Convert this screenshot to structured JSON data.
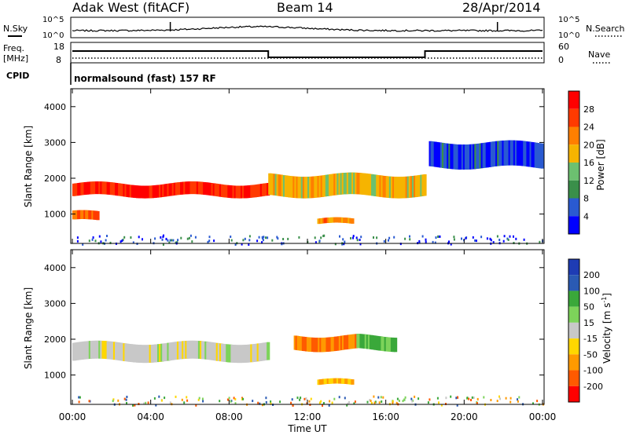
{
  "header": {
    "station": "Adak West (fitACF)",
    "beam": "Beam 14",
    "date": "28/Apr/2014"
  },
  "noise_panel": {
    "left_label": "N.Sky",
    "right_label": "N.Search",
    "tick_top": "10^5",
    "tick_bottom": "10^0"
  },
  "freq_panel": {
    "left_label_line1": "Freq.",
    "left_label_line2": "[MHz]",
    "left_ticks": [
      "18",
      "8"
    ],
    "right_ticks": [
      "60",
      "0"
    ],
    "right_label": "Nave",
    "freq_steps": [
      {
        "from": "00:00",
        "to": "10:00",
        "level": "high"
      },
      {
        "from": "10:00",
        "to": "18:00",
        "level": "low"
      },
      {
        "from": "18:00",
        "to": "24:00",
        "level": "high"
      }
    ]
  },
  "cpid": {
    "label": "CPID",
    "program": "normalsound (fast) 157 RF"
  },
  "colors": {
    "power_scale": [
      "#0000ff",
      "#2a5ad1",
      "#3a8f4a",
      "#6cc070",
      "#f6b400",
      "#ff7f00",
      "#ff3a00",
      "#ff0000"
    ],
    "velocity_scale": [
      "#ff0000",
      "#ff5a00",
      "#ff9a00",
      "#ffd700",
      "#c8c8c8",
      "#7dd35a",
      "#3aa83a",
      "#2a5ab4",
      "#1e3cb4"
    ],
    "ground_scatter": "#c8c8c8"
  },
  "chart_data": [
    {
      "type": "heatmap",
      "title": "Power",
      "xlabel": "",
      "ylabel": "Slant Range [km]",
      "xlim": [
        "00:00",
        "24:00"
      ],
      "ylim": [
        180,
        4500
      ],
      "y_ticks": [
        "1000",
        "2000",
        "3000",
        "4000"
      ],
      "colorbar": {
        "label": "Power [dB]",
        "ticks": [
          "4",
          "8",
          "12",
          "16",
          "20",
          "24",
          "28"
        ],
        "range": [
          0,
          32
        ]
      },
      "features": [
        {
          "name": "main band",
          "t_start": 0.0,
          "t_end": 10.0,
          "range_start_km": 1500,
          "range_end_km": 1850,
          "power_db": 28
        },
        {
          "name": "lower patch",
          "t_start": 0.0,
          "t_end": 1.3,
          "range_start_km": 800,
          "range_end_km": 1050,
          "power_db": 24
        },
        {
          "name": "post-midday band",
          "t_start": 10.0,
          "t_end": 18.0,
          "range_start_km": 1500,
          "range_end_km": 2100,
          "power_db": 18
        },
        {
          "name": "evening echo",
          "t_start": 12.5,
          "t_end": 14.3,
          "range_start_km": 700,
          "range_end_km": 850,
          "power_db": 22
        },
        {
          "name": "upper scatter",
          "t_start": 18.2,
          "t_end": 24.0,
          "range_start_km": 2300,
          "range_end_km": 3000,
          "power_db": 5
        }
      ]
    },
    {
      "type": "heatmap",
      "title": "Velocity",
      "xlabel": "Time UT",
      "ylabel": "Slant Range [km]",
      "xlim": [
        "00:00",
        "24:00"
      ],
      "ylim": [
        180,
        4500
      ],
      "x_ticks": [
        "00:00",
        "04:00",
        "08:00",
        "12:00",
        "16:00",
        "20:00",
        "00:00"
      ],
      "y_ticks": [
        "1000",
        "2000",
        "3000",
        "4000"
      ],
      "colorbar": {
        "label": "Velocity [m s^-1]",
        "ticks": [
          "200",
          "100",
          "50",
          "15",
          "-15",
          "-50",
          "-100",
          "-200"
        ]
      },
      "features": [
        {
          "name": "ground scatter band",
          "t_start": 0.0,
          "t_end": 10.0,
          "range_start_km": 1400,
          "range_end_km": 1900,
          "velocity_ms": 0
        },
        {
          "name": "negative flow",
          "t_start": 11.3,
          "t_end": 14.5,
          "range_start_km": 1700,
          "range_end_km": 2100,
          "velocity_ms": -100
        },
        {
          "name": "positive flow",
          "t_start": 14.5,
          "t_end": 16.5,
          "range_start_km": 1700,
          "range_end_km": 2100,
          "velocity_ms": 50
        },
        {
          "name": "evening patch",
          "t_start": 12.5,
          "t_end": 14.3,
          "range_start_km": 700,
          "range_end_km": 850,
          "velocity_ms": -50
        }
      ]
    }
  ]
}
